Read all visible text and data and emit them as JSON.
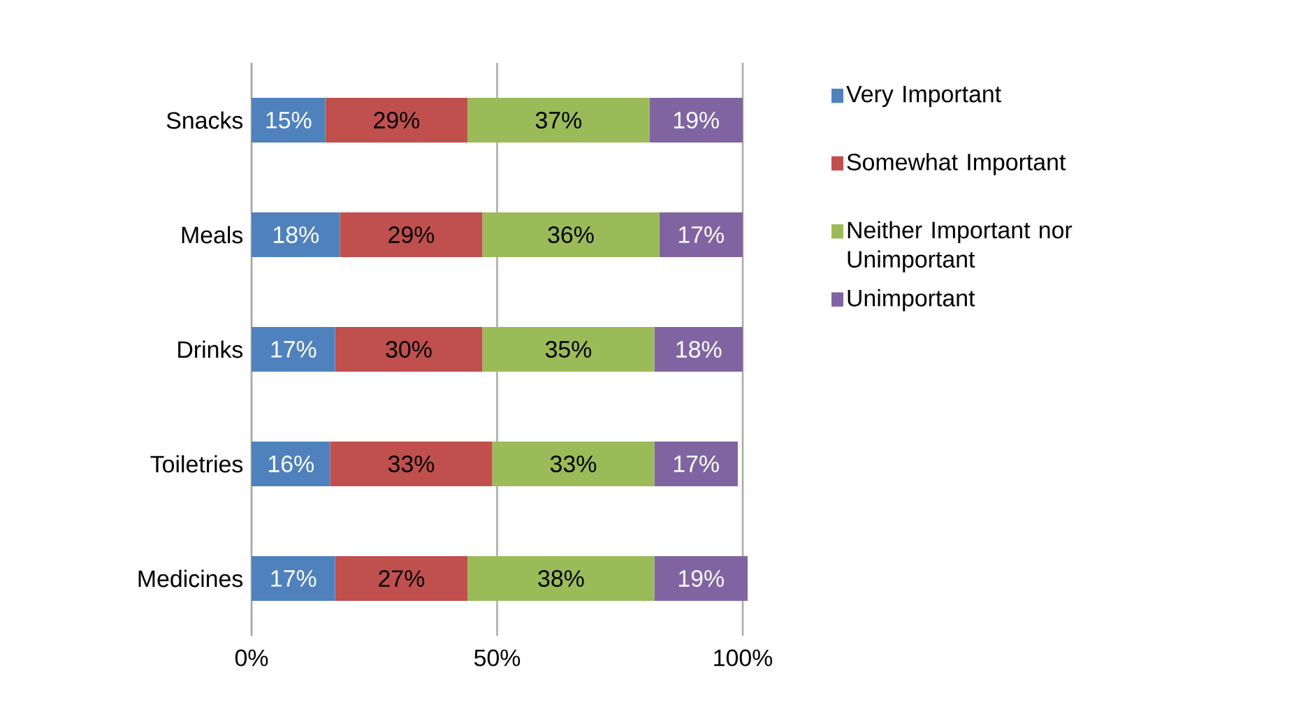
{
  "chart_data": {
    "type": "bar",
    "orientation": "horizontal",
    "stacked": true,
    "categories": [
      "Snacks",
      "Meals",
      "Drinks",
      "Toiletries",
      "Medicines"
    ],
    "series": [
      {
        "name": "Very Important",
        "color": "#4f81bd",
        "values": [
          15,
          18,
          17,
          16,
          17
        ],
        "value_labels": [
          "15%",
          "18%",
          "17%",
          "16%",
          "17%"
        ]
      },
      {
        "name": "Somewhat Important",
        "color": "#c0504d",
        "values": [
          29,
          29,
          30,
          33,
          27
        ],
        "value_labels": [
          "29%",
          "29%",
          "30%",
          "33%",
          "27%"
        ]
      },
      {
        "name": "Neither Important nor Unimportant",
        "color": "#9bbb59",
        "values": [
          37,
          36,
          35,
          33,
          38
        ],
        "value_labels": [
          "37%",
          "36%",
          "35%",
          "33%",
          "38%"
        ]
      },
      {
        "name": "Unimportant",
        "color": "#8064a2",
        "values": [
          19,
          17,
          18,
          17,
          19
        ],
        "value_labels": [
          "19%",
          "17%",
          "18%",
          "17%",
          "19%"
        ]
      }
    ],
    "xlim": [
      0,
      101
    ],
    "xticks": [
      {
        "value": 0,
        "label": "0%"
      },
      {
        "value": 50,
        "label": "50%"
      },
      {
        "value": 100,
        "label": "100%"
      }
    ],
    "grid": "x",
    "legend": "right"
  }
}
